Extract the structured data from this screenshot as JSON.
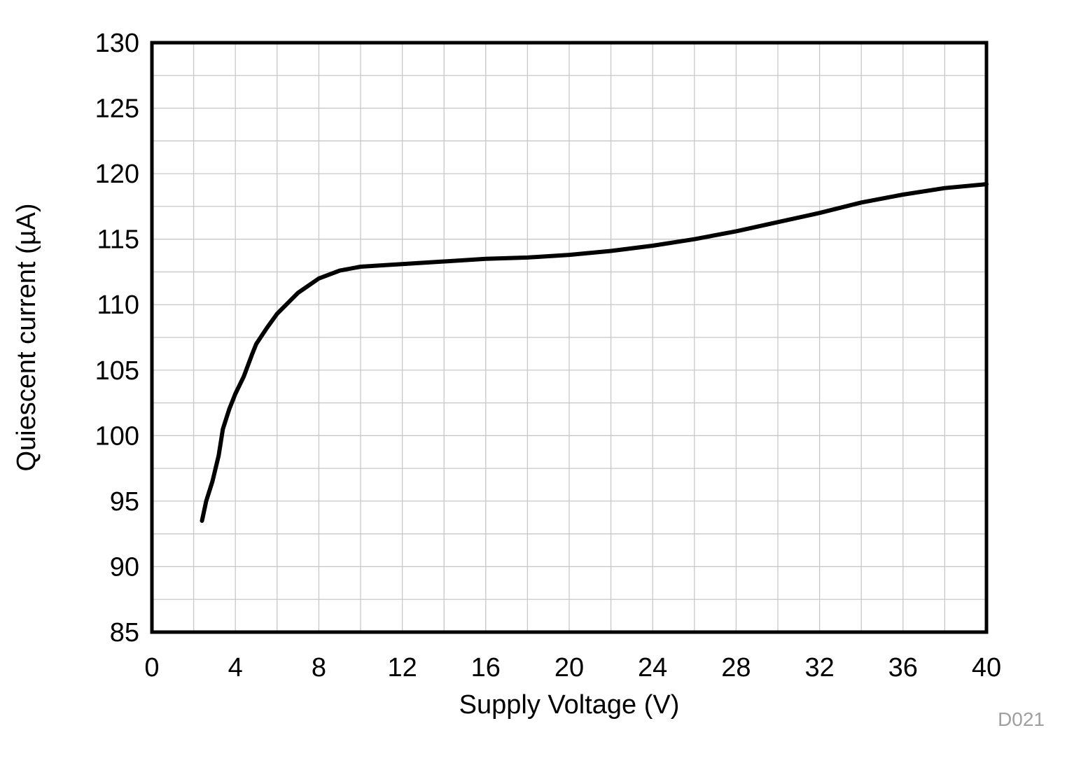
{
  "chart_data": {
    "type": "line",
    "title": "",
    "xlabel": "Supply Voltage (V)",
    "ylabel": "Quiescent current (µA)",
    "xlim": [
      0,
      40
    ],
    "ylim": [
      85,
      130
    ],
    "xticks": [
      0,
      4,
      8,
      12,
      16,
      20,
      24,
      28,
      32,
      36,
      40
    ],
    "yticks": [
      85,
      90,
      95,
      100,
      105,
      110,
      115,
      120,
      125,
      130
    ],
    "x_minor_step": 2,
    "y_minor_step": 2.5,
    "grid": true,
    "legend": "none",
    "colors": {
      "line": "#000000",
      "grid": "#c8c8c8",
      "frame": "#000000"
    },
    "series": [
      {
        "x": [
          2.4,
          2.6,
          2.9,
          3.2,
          3.4,
          3.7,
          4.0,
          4.4,
          4.8,
          5.0,
          5.5,
          6.0,
          7.0,
          8.0,
          9.0,
          10.0,
          12.0,
          14.0,
          16.0,
          18.0,
          20.0,
          22.0,
          24.0,
          26.0,
          28.0,
          30.0,
          32.0,
          34.0,
          36.0,
          38.0,
          40.0
        ],
        "y": [
          93.5,
          95.0,
          96.5,
          98.5,
          100.5,
          102.0,
          103.2,
          104.5,
          106.2,
          107.0,
          108.2,
          109.3,
          110.9,
          112.0,
          112.6,
          112.9,
          113.1,
          113.3,
          113.5,
          113.6,
          113.8,
          114.1,
          114.5,
          115.0,
          115.6,
          116.3,
          117.0,
          117.8,
          118.4,
          118.9,
          119.2
        ]
      }
    ]
  },
  "figure_id": "D021"
}
